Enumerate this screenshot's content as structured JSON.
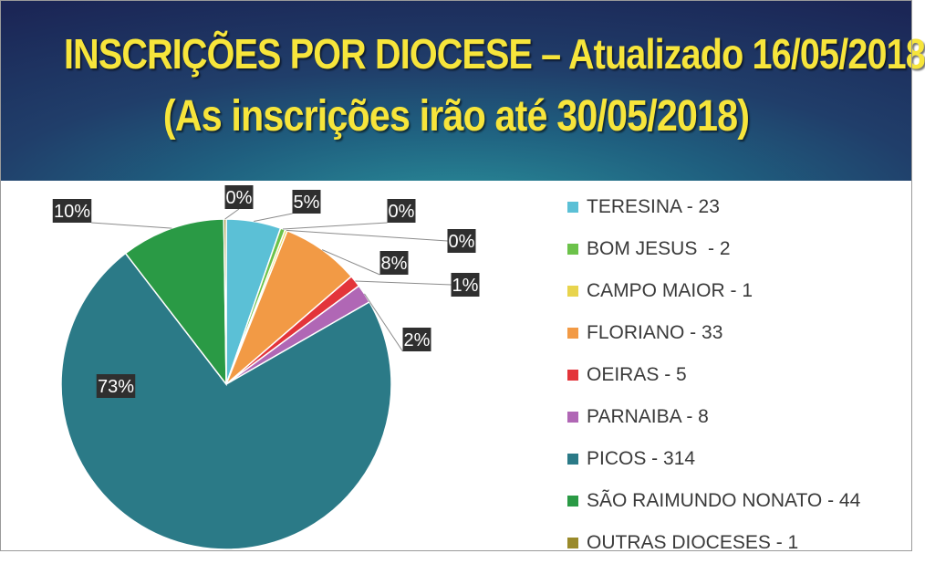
{
  "header": {
    "title_line1": "INSCRIÇÕES POR DIOCESE – Atualizado 16/05/2018",
    "title_line2": "(As inscrições irão até 30/05/2018)"
  },
  "chart_data": {
    "type": "pie",
    "slices": [
      {
        "label": "TERESINA - 23",
        "value": 23,
        "pct_label": "5%",
        "color": "#5bc0d6"
      },
      {
        "label": "BOM JESUS  - 2",
        "value": 2,
        "pct_label": "0%",
        "color": "#6cc24a"
      },
      {
        "label": "CAMPO MAIOR - 1",
        "value": 1,
        "pct_label": "0%",
        "color": "#e8d44d"
      },
      {
        "label": "FLORIANO - 33",
        "value": 33,
        "pct_label": "8%",
        "color": "#f29a45"
      },
      {
        "label": "OEIRAS - 5",
        "value": 5,
        "pct_label": "1%",
        "color": "#e3343a"
      },
      {
        "label": "PARNAIBA - 8",
        "value": 8,
        "pct_label": "2%",
        "color": "#b067b5"
      },
      {
        "label": "PICOS - 314",
        "value": 314,
        "pct_label": "73%",
        "color": "#2b7a87"
      },
      {
        "label": "SÃO RAIMUNDO NONATO - 44",
        "value": 44,
        "pct_label": "10%",
        "color": "#2a9a45"
      },
      {
        "label": "OUTRAS DIOCESES - 1",
        "value": 1,
        "pct_label": "0%",
        "color": "#9a8a2a"
      }
    ],
    "legend_position": "right"
  }
}
